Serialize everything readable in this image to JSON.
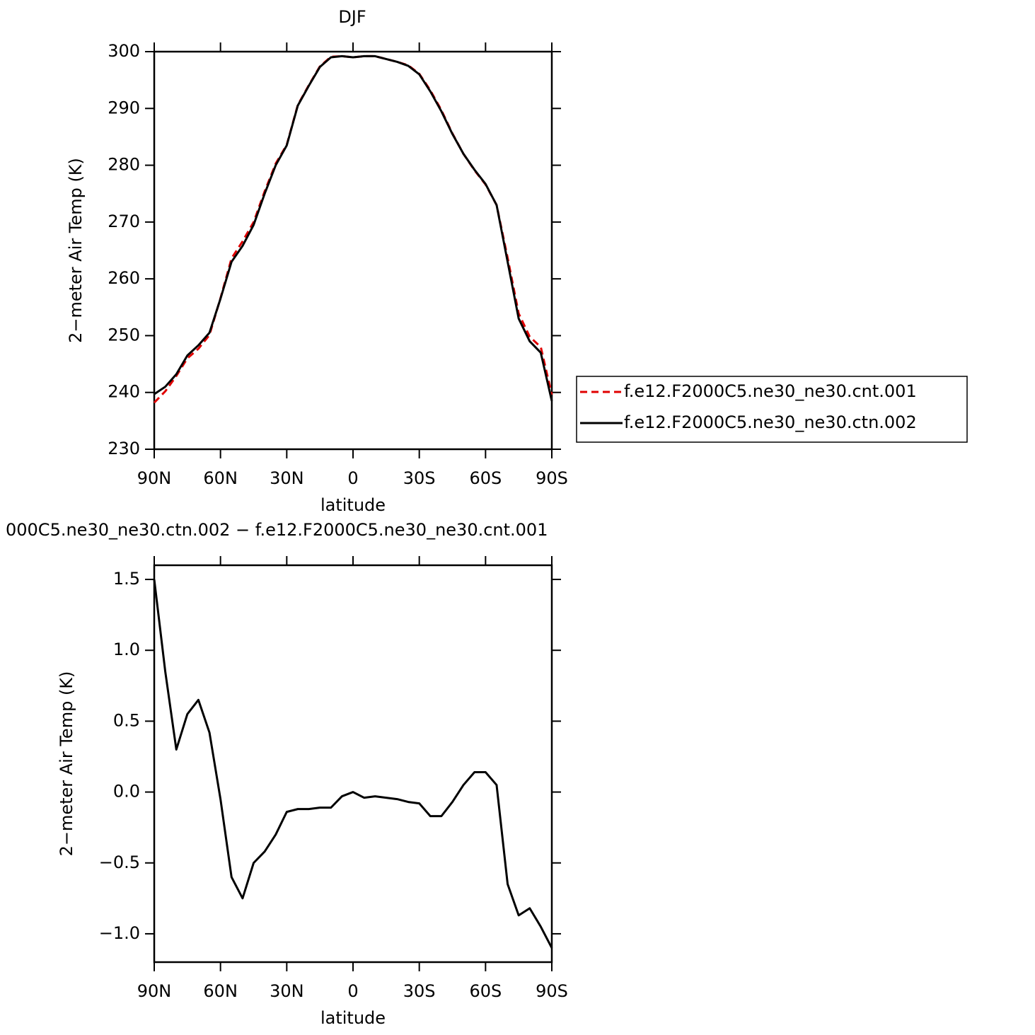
{
  "chart_data": [
    {
      "type": "line",
      "title": "DJF",
      "x_label": "latitude",
      "y_label": "2−meter Air Temp (K)",
      "x": [
        90,
        85,
        80,
        75,
        70,
        65,
        60,
        55,
        50,
        45,
        40,
        35,
        30,
        25,
        20,
        15,
        10,
        5,
        0,
        -5,
        -10,
        -15,
        -20,
        -25,
        -30,
        -35,
        -40,
        -45,
        -50,
        -55,
        -60,
        -65,
        -70,
        -75,
        -80,
        -85,
        -90
      ],
      "xlim": [
        90,
        -90
      ],
      "xticks": [
        {
          "value": 90,
          "label": "90N"
        },
        {
          "value": 60,
          "label": "60N"
        },
        {
          "value": 30,
          "label": "30N"
        },
        0,
        {
          "value": -30,
          "label": "30S"
        },
        {
          "value": -60,
          "label": "60S"
        },
        {
          "value": -90,
          "label": "90S"
        }
      ],
      "ylim": [
        230,
        300
      ],
      "yticks": [
        230,
        240,
        250,
        260,
        270,
        280,
        290,
        300
      ],
      "legend": "right",
      "series": [
        {
          "name": "f.e12.F2000C5.ne30_ne30.cnt.001",
          "color": "#e00000",
          "dash": true,
          "values": [
            238.2,
            240.2,
            242.9,
            246.0,
            247.7,
            250.1,
            256.6,
            263.6,
            266.6,
            270.0,
            275.4,
            280.3,
            283.6,
            290.6,
            294.1,
            297.4,
            299.1,
            299.2,
            299.0,
            299.2,
            299.2,
            298.7,
            298.2,
            297.6,
            296.1,
            293.2,
            289.7,
            285.6,
            282.0,
            279.1,
            276.6,
            273.0,
            263.7,
            253.9,
            249.8,
            248.0,
            239.6
          ]
        },
        {
          "name": "f.e12.F2000C5.ne30_ne30.ctn.002",
          "color": "#000000",
          "dash": false,
          "values": [
            239.7,
            241.0,
            243.2,
            246.5,
            248.3,
            250.5,
            256.5,
            263.0,
            265.8,
            269.5,
            275.0,
            280.0,
            283.5,
            290.5,
            294.0,
            297.3,
            299.0,
            299.2,
            299.0,
            299.2,
            299.2,
            298.7,
            298.2,
            297.5,
            296.0,
            293.0,
            289.5,
            285.5,
            282.0,
            279.2,
            276.7,
            273.0,
            263.0,
            253.0,
            249.0,
            247.0,
            238.5
          ]
        }
      ]
    },
    {
      "type": "line",
      "title": "000C5.ne30_ne30.ctn.002 − f.e12.F2000C5.ne30_ne30.cnt.001",
      "x_label": "latitude",
      "y_label": "2−meter Air Temp (K)",
      "x": [
        90,
        85,
        80,
        75,
        70,
        65,
        60,
        55,
        50,
        45,
        40,
        35,
        30,
        25,
        20,
        15,
        10,
        5,
        0,
        -5,
        -10,
        -15,
        -20,
        -25,
        -30,
        -35,
        -40,
        -45,
        -50,
        -55,
        -60,
        -65,
        -70,
        -75,
        -80,
        -85,
        -90
      ],
      "xlim": [
        90,
        -90
      ],
      "xticks": [
        {
          "value": 90,
          "label": "90N"
        },
        {
          "value": 60,
          "label": "60N"
        },
        {
          "value": 30,
          "label": "30N"
        },
        0,
        {
          "value": -30,
          "label": "30S"
        },
        {
          "value": -60,
          "label": "60S"
        },
        {
          "value": -90,
          "label": "90S"
        }
      ],
      "ylim": [
        -1.2,
        1.6
      ],
      "yticks": [
        {
          "value": -1.0,
          "label": "−1.0"
        },
        {
          "value": -0.5,
          "label": "−0.5"
        },
        {
          "value": 0,
          "label": "0.0"
        },
        {
          "value": 0.5,
          "label": "0.5"
        },
        {
          "value": 1.0,
          "label": "1.0"
        },
        {
          "value": 1.5,
          "label": "1.5"
        }
      ],
      "color": "#000000",
      "values": [
        1.5,
        0.85,
        0.3,
        0.55,
        0.65,
        0.42,
        -0.05,
        -0.6,
        -0.75,
        -0.5,
        -0.42,
        -0.3,
        -0.14,
        -0.12,
        -0.12,
        -0.11,
        -0.11,
        -0.03,
        0.0,
        -0.04,
        -0.03,
        -0.04,
        -0.05,
        -0.07,
        -0.08,
        -0.17,
        -0.17,
        -0.07,
        0.05,
        0.14,
        0.14,
        0.05,
        -0.65,
        -0.87,
        -0.82,
        -0.95,
        -1.1
      ]
    }
  ]
}
